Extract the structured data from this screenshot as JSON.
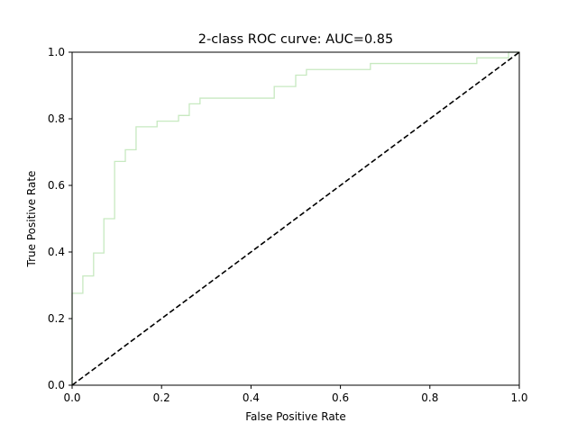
{
  "chart_data": {
    "type": "line",
    "title": "2-class ROC curve: AUC=0.85",
    "xlabel": "False Positive Rate",
    "ylabel": "True Positive Rate",
    "xlim": [
      0.0,
      1.0
    ],
    "ylim": [
      0.0,
      1.0
    ],
    "x_ticks": [
      "0.0",
      "0.2",
      "0.4",
      "0.6",
      "0.8",
      "1.0"
    ],
    "y_ticks": [
      "0.0",
      "0.2",
      "0.4",
      "0.6",
      "0.8",
      "1.0"
    ],
    "grid": false,
    "legend": "none",
    "series": [
      {
        "style": "step",
        "color": "#c7e9c0",
        "x": [
          0.0,
          0.0,
          0.024,
          0.024,
          0.048,
          0.048,
          0.071,
          0.071,
          0.095,
          0.095,
          0.119,
          0.119,
          0.143,
          0.143,
          0.19,
          0.19,
          0.238,
          0.238,
          0.262,
          0.262,
          0.286,
          0.286,
          0.452,
          0.452,
          0.5,
          0.5,
          0.524,
          0.524,
          0.667,
          0.667,
          0.905,
          0.905,
          0.976,
          0.976,
          1.0
        ],
        "y": [
          0.0,
          0.276,
          0.276,
          0.328,
          0.328,
          0.397,
          0.397,
          0.5,
          0.5,
          0.672,
          0.672,
          0.707,
          0.707,
          0.776,
          0.776,
          0.793,
          0.793,
          0.81,
          0.81,
          0.845,
          0.845,
          0.862,
          0.862,
          0.897,
          0.897,
          0.931,
          0.931,
          0.948,
          0.948,
          0.966,
          0.966,
          0.983,
          0.983,
          1.0,
          1.0
        ]
      },
      {
        "style": "dashed",
        "color": "#000000",
        "x": [
          0.0,
          1.0
        ],
        "y": [
          0.0,
          1.0
        ]
      }
    ]
  }
}
